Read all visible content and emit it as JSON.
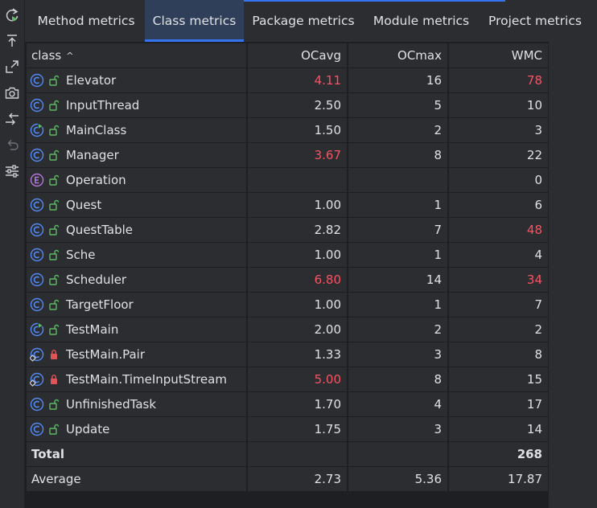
{
  "tabs": [
    {
      "label": "Method metrics",
      "active": false
    },
    {
      "label": "Class metrics",
      "active": true
    },
    {
      "label": "Package metrics",
      "active": false
    },
    {
      "label": "Module metrics",
      "active": false
    },
    {
      "label": "Project metrics",
      "active": false
    }
  ],
  "toolbar": [
    "rerun-icon",
    "export-icon",
    "expand-icon",
    "camera-icon",
    "compare-icon",
    "undo-icon",
    "settings-icon"
  ],
  "columns": {
    "class": "class",
    "sort_indicator": "^",
    "ocavg": "OCavg",
    "ocmax": "OCmax",
    "wmc": "WMC"
  },
  "colors": {
    "accent": "#3574f0",
    "warning": "#f75464",
    "class_icon": "#548af7",
    "enum_icon": "#b877e0",
    "lock_open": "#5fb865",
    "lock_private": "#e05555"
  },
  "rows": [
    {
      "name": "Elevator",
      "kind": "class",
      "access": "public",
      "ocavg": "4.11",
      "ocavg_warn": true,
      "ocmax": "16",
      "wmc": "78",
      "wmc_warn": true
    },
    {
      "name": "InputThread",
      "kind": "class",
      "access": "public",
      "ocavg": "2.50",
      "ocavg_warn": false,
      "ocmax": "5",
      "wmc": "10",
      "wmc_warn": false
    },
    {
      "name": "MainClass",
      "kind": "runnable",
      "access": "public",
      "ocavg": "1.50",
      "ocavg_warn": false,
      "ocmax": "2",
      "wmc": "3",
      "wmc_warn": false
    },
    {
      "name": "Manager",
      "kind": "class",
      "access": "public",
      "ocavg": "3.67",
      "ocavg_warn": true,
      "ocmax": "8",
      "wmc": "22",
      "wmc_warn": false
    },
    {
      "name": "Operation",
      "kind": "enum",
      "access": "public",
      "ocavg": "",
      "ocavg_warn": false,
      "ocmax": "",
      "wmc": "0",
      "wmc_warn": false
    },
    {
      "name": "Quest",
      "kind": "class",
      "access": "public",
      "ocavg": "1.00",
      "ocavg_warn": false,
      "ocmax": "1",
      "wmc": "6",
      "wmc_warn": false
    },
    {
      "name": "QuestTable",
      "kind": "class",
      "access": "public",
      "ocavg": "2.82",
      "ocavg_warn": false,
      "ocmax": "7",
      "wmc": "48",
      "wmc_warn": true
    },
    {
      "name": "Sche",
      "kind": "class",
      "access": "public",
      "ocavg": "1.00",
      "ocavg_warn": false,
      "ocmax": "1",
      "wmc": "4",
      "wmc_warn": false
    },
    {
      "name": "Scheduler",
      "kind": "class",
      "access": "public",
      "ocavg": "6.80",
      "ocavg_warn": true,
      "ocmax": "14",
      "wmc": "34",
      "wmc_warn": true
    },
    {
      "name": "TargetFloor",
      "kind": "class",
      "access": "public",
      "ocavg": "1.00",
      "ocavg_warn": false,
      "ocmax": "1",
      "wmc": "7",
      "wmc_warn": false
    },
    {
      "name": "TestMain",
      "kind": "runnable",
      "access": "public",
      "ocavg": "2.00",
      "ocavg_warn": false,
      "ocmax": "2",
      "wmc": "2",
      "wmc_warn": false
    },
    {
      "name": "TestMain.Pair",
      "kind": "static-class",
      "access": "private",
      "ocavg": "1.33",
      "ocavg_warn": false,
      "ocmax": "3",
      "wmc": "8",
      "wmc_warn": false
    },
    {
      "name": "TestMain.TimeInputStream",
      "kind": "static-class",
      "access": "private",
      "ocavg": "5.00",
      "ocavg_warn": true,
      "ocmax": "8",
      "wmc": "15",
      "wmc_warn": false
    },
    {
      "name": "UnfinishedTask",
      "kind": "class",
      "access": "public",
      "ocavg": "1.70",
      "ocavg_warn": false,
      "ocmax": "4",
      "wmc": "17",
      "wmc_warn": false
    },
    {
      "name": "Update",
      "kind": "class",
      "access": "public",
      "ocavg": "1.75",
      "ocavg_warn": false,
      "ocmax": "3",
      "wmc": "14",
      "wmc_warn": false
    }
  ],
  "total": {
    "label": "Total",
    "ocavg": "",
    "ocmax": "",
    "wmc": "268"
  },
  "average": {
    "label": "Average",
    "ocavg": "2.73",
    "ocmax": "5.36",
    "wmc": "17.87"
  }
}
